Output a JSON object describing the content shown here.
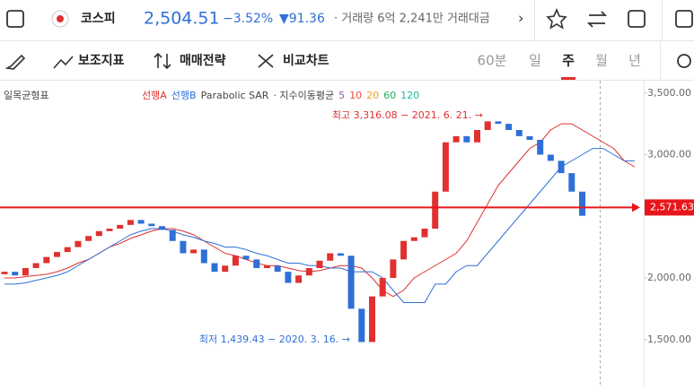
{
  "header": {
    "name": "코스피",
    "price": "2,504.51",
    "change_pct": "−3.52%",
    "change": "▼91.36",
    "volume": "· 거래량 6억 2,241만 거래대금"
  },
  "toolbar": {
    "indicators": "보조지표",
    "strategy": "매매전략",
    "compare": "비교차트",
    "periods": [
      "60분",
      "일",
      "주",
      "월",
      "년"
    ],
    "selected_period": "주"
  },
  "chart_data": {
    "type": "candlestick",
    "indicator_title": "일목균형표",
    "legend": {
      "span_a": "선행A",
      "span_b": "선행B",
      "sar": "Parabolic SAR",
      "ema": "· 지수이동평균",
      "ema_periods": [
        {
          "label": "5",
          "color": "#9b59b6"
        },
        {
          "label": "10",
          "color": "#e74c3c"
        },
        {
          "label": "20",
          "color": "#f39c12"
        },
        {
          "label": "60",
          "color": "#27ae60"
        },
        {
          "label": "120",
          "color": "#1abc9c"
        }
      ]
    },
    "up_color": "#e0302f",
    "down_color": "#2f6fd6",
    "opens": [
      2030,
      2050,
      2020,
      2080,
      2120,
      2170,
      2210,
      2250,
      2300,
      2340,
      2380,
      2400,
      2430,
      2470,
      2440,
      2420,
      2390,
      2300,
      2200,
      2230,
      2120,
      2050,
      2100,
      2180,
      2150,
      2080,
      2100,
      2050,
      1960,
      2020,
      2080,
      2140,
      2200,
      2180,
      1750,
      1480,
      1850,
      2000,
      2150,
      2300,
      2330,
      2400,
      2700,
      3100,
      3150,
      3100,
      3200,
      3270,
      3250,
      3200,
      3150,
      3120,
      3000,
      2950,
      2850,
      2700
    ],
    "closes": [
      2050,
      2020,
      2080,
      2120,
      2170,
      2210,
      2250,
      2300,
      2340,
      2380,
      2400,
      2430,
      2470,
      2440,
      2420,
      2390,
      2300,
      2200,
      2230,
      2120,
      2050,
      2100,
      2180,
      2150,
      2080,
      2100,
      2050,
      1960,
      2020,
      2080,
      2140,
      2200,
      2180,
      1750,
      1480,
      1850,
      2000,
      2150,
      2300,
      2330,
      2400,
      2700,
      3100,
      3150,
      3100,
      3200,
      3270,
      3250,
      3200,
      3150,
      3120,
      3000,
      2950,
      2850,
      2700,
      2504
    ],
    "span_a": {
      "name": "선행A",
      "color": "#e0302f",
      "values": [
        2000,
        2000,
        2010,
        2020,
        2030,
        2050,
        2080,
        2120,
        2150,
        2200,
        2250,
        2280,
        2320,
        2350,
        2380,
        2400,
        2400,
        2380,
        2350,
        2300,
        2250,
        2200,
        2180,
        2150,
        2120,
        2100,
        2100,
        2080,
        2060,
        2050,
        2060,
        2080,
        2100,
        2100,
        2080,
        2000,
        1900,
        1850,
        1900,
        2000,
        2050,
        2100,
        2150,
        2200,
        2300,
        2450,
        2600,
        2750,
        2850,
        2950,
        3050,
        3100,
        3200,
        3250,
        3250,
        3200,
        3150,
        3100,
        3050,
        2950,
        2900
      ]
    },
    "span_b": {
      "name": "선행B",
      "color": "#2f6fd6",
      "values": [
        1950,
        1950,
        1960,
        1980,
        2000,
        2020,
        2050,
        2100,
        2150,
        2200,
        2250,
        2300,
        2350,
        2380,
        2400,
        2400,
        2380,
        2350,
        2330,
        2300,
        2280,
        2250,
        2250,
        2230,
        2200,
        2180,
        2150,
        2120,
        2120,
        2100,
        2100,
        2080,
        2080,
        2050,
        2050,
        2050,
        2000,
        1900,
        1800,
        1800,
        1800,
        1950,
        1950,
        2050,
        2100,
        2100,
        2200,
        2300,
        2400,
        2500,
        2600,
        2700,
        2800,
        2900,
        2950,
        3000,
        3050,
        3050,
        3000,
        2950,
        2950
      ]
    },
    "ylim": [
      1120,
      3600
    ],
    "yticks": [
      {
        "value": 3500,
        "label": "3,500.00"
      },
      {
        "value": 3000,
        "label": "3,000.00"
      },
      {
        "value": 2000,
        "label": "2,000.00"
      },
      {
        "value": 1500,
        "label": "1,500.00"
      }
    ],
    "reference_line": {
      "value": 2571.63,
      "label": "2,571.63",
      "color": "#e8161b"
    },
    "annotations": [
      {
        "text": "최고 3,316.08 − 2021. 6. 21. →",
        "value": 3316.08,
        "color": "#e0302f"
      },
      {
        "text": "최저 1,439.43 − 2020. 3. 16. →",
        "value": 1439.43,
        "color": "#2f6fd6"
      }
    ]
  }
}
